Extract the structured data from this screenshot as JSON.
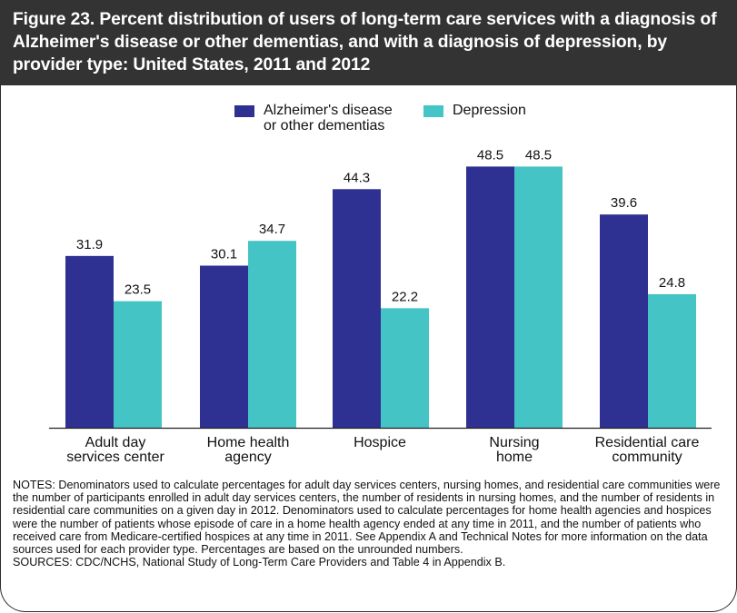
{
  "figure": {
    "title": "Figure 23. Percent distribution of users of long-term care services with a diagnosis of Alzheimer's disease or other dementias, and with a diagnosis of depression, by provider type: United States, 2011 and 2012"
  },
  "colors": {
    "header_bg": "#333333",
    "alzheimers": "#2e3192",
    "depression": "#45c4c6"
  },
  "chart_data": {
    "type": "bar",
    "categories": [
      "Adult day\nservices center",
      "Home health\nagency",
      "Hospice",
      "Nursing\nhome",
      "Residential care\ncommunity"
    ],
    "series": [
      {
        "name": "Alzheimer's disease\nor other dementias",
        "color": "#2e3192",
        "values": [
          31.9,
          30.1,
          44.3,
          48.5,
          39.6
        ]
      },
      {
        "name": "Depression",
        "color": "#45c4c6",
        "values": [
          23.5,
          34.7,
          22.2,
          48.5,
          24.8
        ]
      }
    ],
    "ylim": [
      0,
      50
    ],
    "grid": false,
    "legend_position": "top-center",
    "data_labels": true
  },
  "notes": {
    "notes_text": "NOTES: Denominators used to calculate percentages for adult day services centers, nursing homes, and residential care communities were the number of participants enrolled in adult day services centers, the number of residents in nursing homes, and the number of residents in residential care communities on a given day in 2012. Denominators used to calculate percentages for home health agencies and hospices were the number of patients whose episode of care in a home health agency ended at any time in 2011, and the number of patients who received care from Medicare-certified hospices at any time in 2011. See Appendix A and Technical Notes for more information on the data sources used for each provider type. Percentages are based on the unrounded numbers.",
    "sources_text": "SOURCES: CDC/NCHS, National Study of Long-Term Care Providers and Table 4 in Appendix B."
  }
}
